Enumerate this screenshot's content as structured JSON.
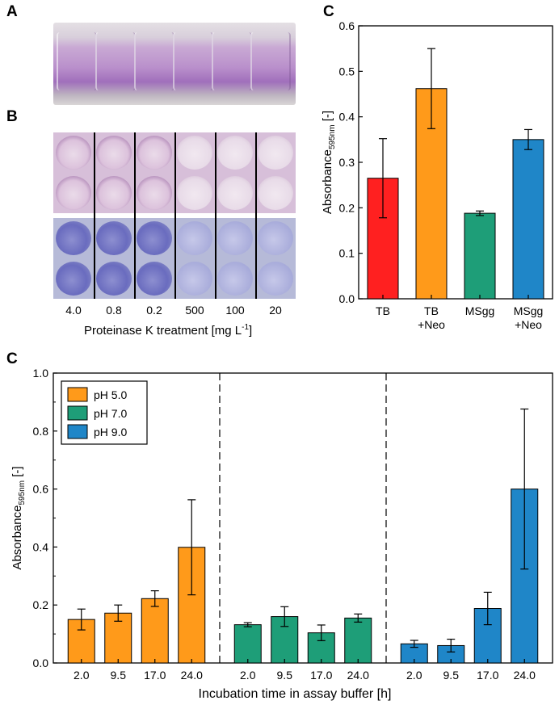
{
  "panels": {
    "a": {
      "letter": "A"
    },
    "b": {
      "letter": "B",
      "treatment_labels": [
        "4.0",
        "0.8",
        "0.2",
        "500",
        "100",
        "20"
      ],
      "axis_label_main": "Proteinase K treatment [mg L",
      "axis_label_sup": "-1",
      "axis_label_end": "]"
    },
    "c_top": {
      "letter": "C"
    },
    "c_bottom": {
      "letter": "C"
    }
  },
  "colors": {
    "red": "#ff2020",
    "orange": "#ff9a1a",
    "green": "#1e9e78",
    "blue": "#1f86c8"
  },
  "chart_data": [
    {
      "type": "bar",
      "title": "",
      "categories": [
        "TB",
        "TB\n+Neo",
        "MSgg",
        "MSgg\n+Neo"
      ],
      "values": [
        0.265,
        0.462,
        0.188,
        0.35
      ],
      "errors": [
        0.087,
        0.088,
        0.005,
        0.022
      ],
      "bar_colors": [
        "#ff2020",
        "#ff9a1a",
        "#1e9e78",
        "#1f86c8"
      ],
      "ylabel_main": "Absorbance",
      "ylabel_sub": "595nm",
      "ylabel_end": " [-]",
      "xlabel": "",
      "ylim": [
        0,
        0.6
      ],
      "yticks": [
        "0.0",
        "0.1",
        "0.2",
        "0.3",
        "0.4",
        "0.5",
        "0.6"
      ]
    },
    {
      "type": "bar",
      "title": "",
      "xlabel": "Incubation time in assay buffer [h]",
      "ylabel_main": "Absorbance",
      "ylabel_sub": "595nm",
      "ylabel_end": " [-]",
      "ylim": [
        0,
        1.0
      ],
      "yticks": [
        "0.0",
        "0.2",
        "0.4",
        "0.6",
        "0.8",
        "1.0"
      ],
      "legend": {
        "position": "top-left",
        "entries": [
          "pH 5.0",
          "pH 7.0",
          "pH 9.0"
        ]
      },
      "groups": [
        {
          "name": "pH 5.0",
          "color": "#ff9a1a",
          "categories": [
            "2.0",
            "9.5",
            "17.0",
            "24.0"
          ],
          "values": [
            0.15,
            0.172,
            0.222,
            0.399
          ],
          "errors": [
            0.036,
            0.028,
            0.027,
            0.164
          ]
        },
        {
          "name": "pH 7.0",
          "color": "#1e9e78",
          "categories": [
            "2.0",
            "9.5",
            "17.0",
            "24.0"
          ],
          "values": [
            0.132,
            0.16,
            0.104,
            0.155
          ],
          "errors": [
            0.007,
            0.034,
            0.027,
            0.014
          ]
        },
        {
          "name": "pH 9.0",
          "color": "#1f86c8",
          "categories": [
            "2.0",
            "9.5",
            "17.0",
            "24.0"
          ],
          "values": [
            0.066,
            0.06,
            0.188,
            0.6
          ],
          "errors": [
            0.012,
            0.022,
            0.056,
            0.276
          ]
        }
      ]
    }
  ]
}
